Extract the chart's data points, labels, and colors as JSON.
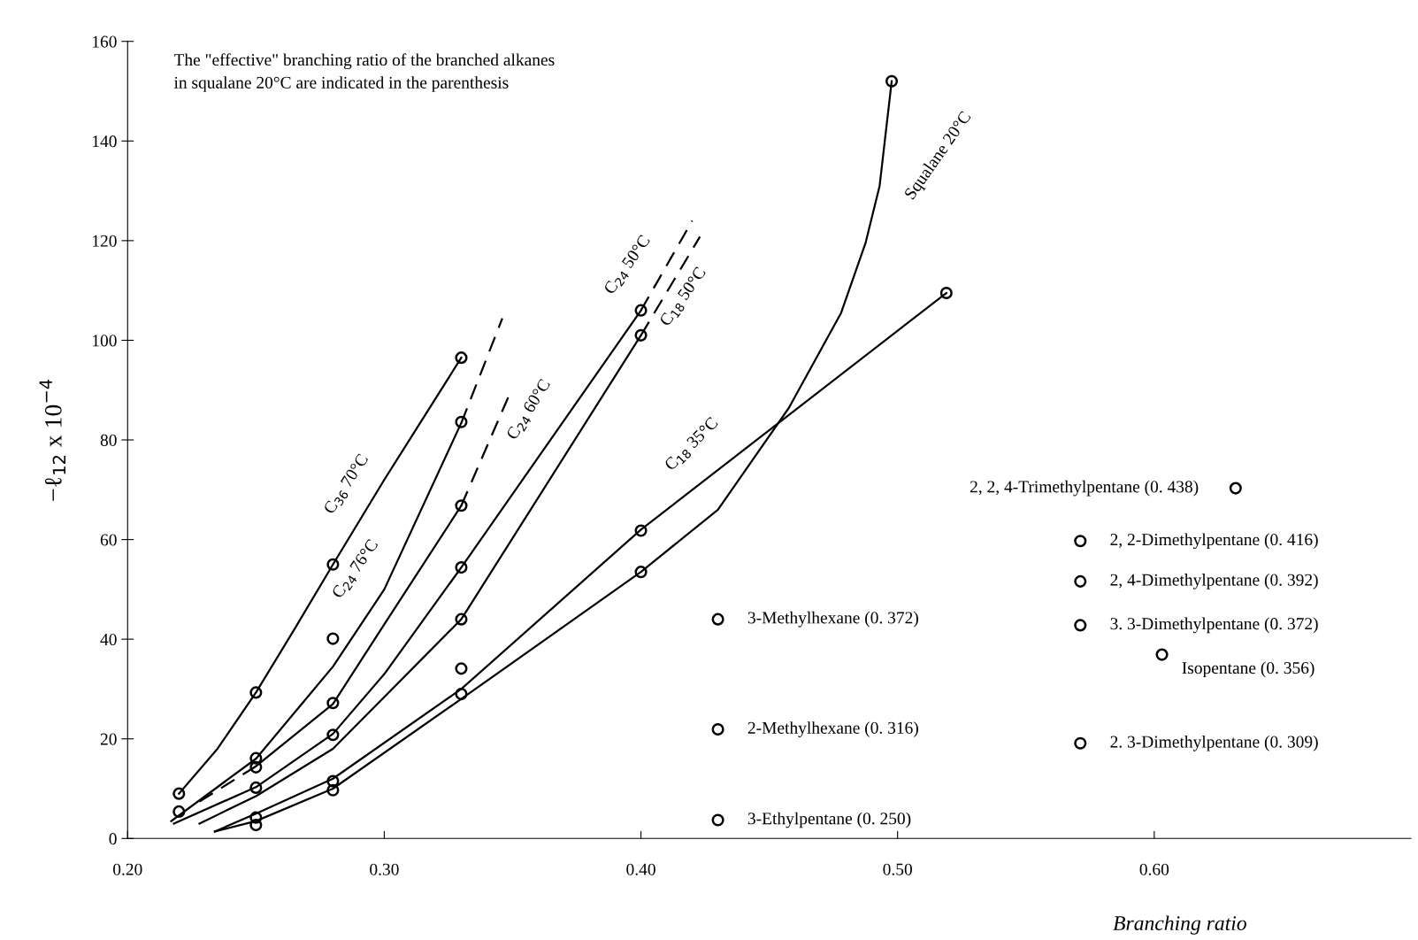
{
  "chart_data": {
    "type": "line",
    "xlabel": "Branching ratio",
    "ylabel": "−ℓ$_{12}$ x 10$^{−4}$",
    "xlim": [
      0.2,
      0.7
    ],
    "ylim": [
      0,
      160
    ],
    "xticks": [
      {
        "value": 0.2,
        "label": "0.20"
      },
      {
        "value": 0.3,
        "label": "0.30"
      },
      {
        "value": 0.4,
        "label": "0.40"
      },
      {
        "value": 0.5,
        "label": "0.50"
      },
      {
        "value": 0.6,
        "label": "0.60"
      }
    ],
    "yticks": [
      0,
      20,
      40,
      60,
      80,
      100,
      120,
      140,
      160
    ],
    "grid": false,
    "legend": false,
    "series": [
      {
        "color": "#000000",
        "line_style": "solid",
        "x": [
          0.22,
          0.235,
          0.25,
          0.265,
          0.28,
          0.3,
          0.33
        ],
        "values": [
          9,
          18,
          29.3,
          42,
          55,
          72,
          96.5
        ]
      },
      {
        "color": "#000000",
        "line_style": "solid",
        "x": [
          0.217,
          0.25,
          0.28,
          0.3,
          0.33
        ],
        "values": [
          3.5,
          16,
          34.5,
          50,
          83.4
        ]
      },
      {
        "color": "#000000",
        "line_style": "dashed",
        "x": [
          0.33,
          0.346
        ],
        "values": [
          83.4,
          104.4
        ]
      },
      {
        "color": "#000000",
        "line_style": "dashed",
        "x": [
          0.228,
          0.25
        ],
        "values": [
          7.4,
          14.5
        ]
      },
      {
        "color": "#000000",
        "line_style": "solid",
        "x": [
          0.25,
          0.28,
          0.3,
          0.33
        ],
        "values": [
          14.5,
          27,
          43,
          66.8
        ]
      },
      {
        "color": "#000000",
        "line_style": "dashed",
        "x": [
          0.33,
          0.349
        ],
        "values": [
          66.8,
          89.4
        ]
      },
      {
        "color": "#000000",
        "line_style": "solid",
        "x": [
          0.218,
          0.25,
          0.28,
          0.3,
          0.33,
          0.4
        ],
        "values": [
          3,
          10.3,
          21,
          33,
          54.4,
          106
        ]
      },
      {
        "color": "#000000",
        "line_style": "dashed",
        "x": [
          0.4,
          0.42
        ],
        "values": [
          106,
          124
        ]
      },
      {
        "color": "#000000",
        "line_style": "solid",
        "x": [
          0.228,
          0.25,
          0.28,
          0.33,
          0.4
        ],
        "values": [
          3,
          8.5,
          18,
          44,
          101
        ]
      },
      {
        "color": "#000000",
        "line_style": "dashed",
        "x": [
          0.4,
          0.423
        ],
        "values": [
          101,
          120.8
        ]
      },
      {
        "color": "#000000",
        "line_style": "solid",
        "x": [
          0.234,
          0.25,
          0.28,
          0.33,
          0.4,
          0.519
        ],
        "values": [
          1.4,
          5,
          12,
          30,
          62,
          109.5
        ]
      },
      {
        "color": "#000000",
        "line_style": "solid",
        "x": [
          0.234,
          0.25,
          0.28,
          0.33,
          0.4,
          0.43,
          0.4576,
          0.478,
          0.4875,
          0.493,
          0.4977
        ],
        "values": [
          1.4,
          3.5,
          10,
          28,
          53.5,
          66,
          86.4,
          105.5,
          119.5,
          131,
          152
        ]
      },
      {
        "type": "scatter",
        "color": "#000000",
        "marker": "circle",
        "x": [
          0.22,
          0.22,
          0.25,
          0.25,
          0.25,
          0.25,
          0.25,
          0.25,
          0.28,
          0.28,
          0.28,
          0.28,
          0.28,
          0.28,
          0.33,
          0.33,
          0.33,
          0.33,
          0.33,
          0.33,
          0.33,
          0.4,
          0.4,
          0.4,
          0.4,
          0.4977,
          0.519,
          0.43,
          0.43,
          0.43,
          0.5712,
          0.5712,
          0.5712,
          0.603,
          0.5712,
          0.6317
        ],
        "values": [
          9,
          5.4,
          29.3,
          16.1,
          14.3,
          10.2,
          4.2,
          2.7,
          55,
          40.1,
          27.2,
          20.8,
          11.5,
          9.7,
          96.5,
          83.6,
          66.8,
          54.4,
          44,
          34.1,
          29,
          106,
          101,
          61.8,
          53.5,
          152,
          109.5,
          44,
          21.9,
          3.7,
          59.7,
          51.6,
          42.8,
          36.9,
          19.1,
          70.3
        ]
      }
    ],
    "annotations": [
      "The \"effective\" branching ratio of the branched alkanes\nin squalane 20°C are indicated in the parenthesis",
      "C$_{36}$ 70°C",
      "C$_{24}$ 76°C",
      "C$_{24}$ 60°C",
      "C$_{24}$ 50°C",
      "C$_{18}$ 50°C",
      "C$_{18}$ 35°C",
      "Squalane 20°C",
      {
        "text": "3-Methylhexane (0. 372)",
        "x": 0.43,
        "y": 44
      },
      {
        "text": "2-Methylhexane (0. 316)",
        "x": 0.43,
        "y": 21.9
      },
      {
        "text": "3-Ethylpentane (0. 250)",
        "x": 0.43,
        "y": 3.7
      },
      {
        "text": "2, 2, 4-Trimethylpentane (0. 438)",
        "x": 0.6317,
        "y": 70.3
      },
      {
        "text": "2, 2-Dimethylpentane (0. 416)",
        "x": 0.5712,
        "y": 59.7
      },
      {
        "text": "2, 4-Dimethylpentane (0. 392)",
        "x": 0.5712,
        "y": 51.6
      },
      {
        "text": "3. 3-Dimethylpentane (0. 372)",
        "x": 0.5712,
        "y": 42.8
      },
      {
        "text": "Isopentane (0. 356)",
        "x": 0.603,
        "y": 36.9
      },
      {
        "text": "2. 3-Dimethylpentane (0. 309)",
        "x": 0.5712,
        "y": 19.1
      }
    ]
  }
}
